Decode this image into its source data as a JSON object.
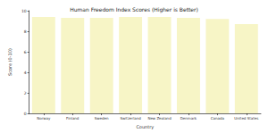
{
  "chart_data": {
    "type": "bar",
    "title": "Human Freedom Index Scores (Higher is Better)",
    "x_label": "Country",
    "y_label": "Score (0-10)",
    "categories": [
      "Norway",
      "Finland",
      "Sweden",
      "Switzerland",
      "New Zealand",
      "Denmark",
      "Canada",
      "United States"
    ],
    "values": [
      9.4,
      9.3,
      9.3,
      9.4,
      9.4,
      9.3,
      9.2,
      8.7
    ],
    "color": "#f7f5c6",
    "ylim": [
      0,
      10
    ],
    "yticks": [
      0,
      2,
      4,
      6,
      8,
      10
    ],
    "grid": false
  }
}
